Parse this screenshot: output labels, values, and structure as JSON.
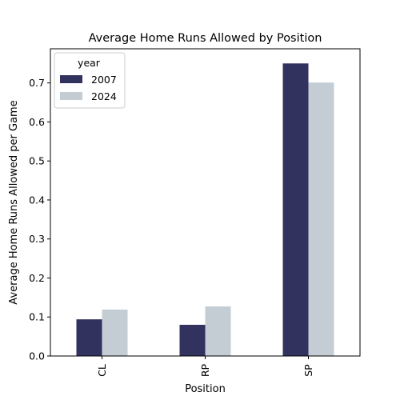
{
  "chart_data": {
    "type": "bar",
    "title": "Average Home Runs Allowed by Position",
    "xlabel": "Position",
    "ylabel": "Average Home Runs Allowed per Game",
    "categories": [
      "CL",
      "RP",
      "SP"
    ],
    "series": [
      {
        "name": "2007",
        "values": [
          0.094,
          0.08,
          0.75
        ],
        "color": "#32325f"
      },
      {
        "name": "2024",
        "values": [
          0.119,
          0.127,
          0.701
        ],
        "color": "#c4ccd4"
      }
    ],
    "ylim": [
      0,
      0.7875
    ],
    "yticks": [
      "0.0",
      "0.1",
      "0.2",
      "0.3",
      "0.4",
      "0.5",
      "0.6",
      "0.7"
    ],
    "legend": {
      "title": "year",
      "placement": "top-left"
    },
    "grid": false
  }
}
